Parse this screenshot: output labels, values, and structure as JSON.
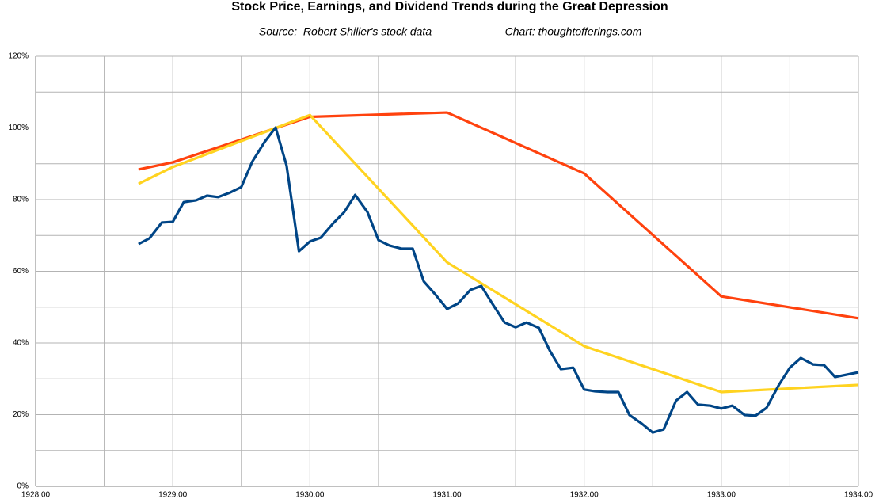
{
  "chart_data": {
    "type": "line",
    "title": "Stock Price, Earnings, and Dividend Trends during the Great Depression",
    "subtitle": "Source:  Robert Shiller's stock data",
    "annotation": "Chart: thoughtofferings.com",
    "xlim": [
      1928,
      1934
    ],
    "xticks": [
      {
        "value": 1928,
        "label": "1928.00"
      },
      {
        "value": 1929,
        "label": "1929.00"
      },
      {
        "value": 1930,
        "label": "1930.00"
      },
      {
        "value": 1931,
        "label": "1931.00"
      },
      {
        "value": 1932,
        "label": "1932.00"
      },
      {
        "value": 1933,
        "label": "1933.00"
      },
      {
        "value": 1934,
        "label": "1934.00"
      }
    ],
    "ylim": [
      0,
      120
    ],
    "yticks": [
      {
        "value": 0,
        "label": "0%"
      },
      {
        "value": 20,
        "label": "20%"
      },
      {
        "value": 40,
        "label": "40%"
      },
      {
        "value": 60,
        "label": "60%"
      },
      {
        "value": 80,
        "label": "80%"
      },
      {
        "value": 100,
        "label": "100%"
      },
      {
        "value": 120,
        "label": "120%"
      }
    ],
    "grid": true,
    "series": [
      {
        "color": "#ff420e",
        "x": [
          1928.75,
          1929.0,
          1930.0,
          1931.0,
          1932.0,
          1933.0,
          1934.0
        ],
        "values": [
          88.4,
          90.4,
          103.1,
          104.3,
          87.3,
          53.0,
          46.9
        ]
      },
      {
        "color": "#ffd320",
        "x": [
          1928.75,
          1929.0,
          1930.0,
          1931.0,
          1932.0,
          1933.0,
          1934.0
        ],
        "values": [
          84.4,
          89.1,
          103.6,
          62.5,
          39.1,
          26.3,
          28.3
        ]
      },
      {
        "color": "#004586",
        "x": [
          1928.75,
          1928.83,
          1928.92,
          1929.0,
          1929.08,
          1929.17,
          1929.25,
          1929.33,
          1929.42,
          1929.5,
          1929.58,
          1929.67,
          1929.75,
          1929.83,
          1929.92,
          1930.0,
          1930.08,
          1930.17,
          1930.25,
          1930.33,
          1930.42,
          1930.5,
          1930.58,
          1930.67,
          1930.75,
          1930.83,
          1930.92,
          1931.0,
          1931.08,
          1931.17,
          1931.25,
          1931.33,
          1931.42,
          1931.5,
          1931.58,
          1931.67,
          1931.75,
          1931.83,
          1931.92,
          1932.0,
          1932.08,
          1932.17,
          1932.25,
          1932.33,
          1932.42,
          1932.5,
          1932.58,
          1932.67,
          1932.75,
          1932.83,
          1932.92,
          1933.0,
          1933.08,
          1933.17,
          1933.25,
          1933.33,
          1933.42,
          1933.5,
          1933.58,
          1933.67,
          1933.75,
          1933.83,
          1933.92,
          1934.0
        ],
        "values": [
          67.6,
          69.2,
          73.6,
          73.8,
          79.3,
          79.8,
          81.1,
          80.7,
          82.0,
          83.5,
          90.6,
          96.1,
          100.1,
          89.5,
          65.6,
          68.3,
          69.4,
          73.4,
          76.5,
          81.3,
          76.5,
          68.7,
          67.2,
          66.3,
          66.3,
          57.2,
          53.3,
          49.5,
          51.0,
          54.8,
          55.9,
          51.0,
          45.7,
          44.4,
          45.7,
          44.2,
          37.8,
          32.7,
          33.1,
          27.0,
          26.5,
          26.3,
          26.3,
          19.9,
          17.5,
          15.0,
          15.9,
          23.9,
          26.3,
          22.8,
          22.5,
          21.7,
          22.5,
          19.9,
          19.7,
          21.9,
          28.3,
          33.1,
          35.8,
          34.0,
          33.8,
          30.5,
          31.2,
          31.8
        ]
      }
    ]
  }
}
